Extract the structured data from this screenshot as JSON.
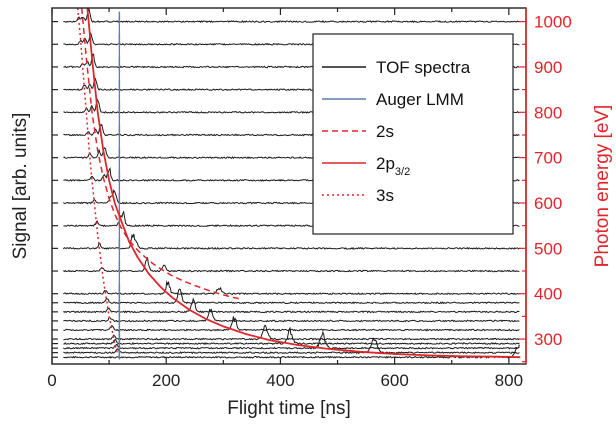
{
  "chart_data": {
    "type": "line",
    "xlabel": "Flight time [ns]",
    "ylabel_left": "Signal [arb. units]",
    "ylabel_right": "Photon energy [eV]",
    "xlim": [
      0,
      830
    ],
    "ylim_right": [
      245,
      1030
    ],
    "x_ticks": [
      0,
      200,
      400,
      600,
      800
    ],
    "y_ticks_right": [
      300,
      400,
      500,
      600,
      700,
      800,
      900,
      1000
    ],
    "grid": false,
    "legend_position": "top-right",
    "colors": {
      "spectra": "#1a1a1a",
      "auger": "#5a7fa8",
      "fit": "#e0262b",
      "right_axis": "#e0262b"
    },
    "legend": [
      {
        "label": "TOF spectra",
        "style": "solid",
        "color": "#1a1a1a"
      },
      {
        "label": "Auger LMM",
        "style": "solid",
        "color": "#5a7fa8"
      },
      {
        "label": "2s",
        "style": "dashed",
        "color": "#e0262b"
      },
      {
        "label": "2p",
        "sub": "3/2",
        "style": "solid",
        "color": "#e0262b"
      },
      {
        "label": "3s",
        "style": "dotted",
        "color": "#e0262b"
      }
    ],
    "photon_energies": [
      260,
      270,
      280,
      290,
      300,
      320,
      340,
      360,
      380,
      400,
      450,
      500,
      550,
      600,
      650,
      700,
      750,
      800,
      850,
      900,
      950,
      1000
    ],
    "spectra_xrange": [
      20,
      820
    ],
    "auger_lmm_time": 118,
    "series": [
      {
        "name": "2s",
        "style": "dashed",
        "x": [
          52,
          60,
          70,
          80,
          90,
          100,
          110,
          120,
          130,
          140,
          150,
          160,
          175,
          190,
          210,
          230,
          250,
          270,
          290,
          310,
          330
        ],
        "y": [
          1030,
          920,
          800,
          715,
          655,
          610,
          575,
          548,
          527,
          510,
          496,
          484,
          468,
          455,
          440,
          428,
          418,
          409,
          401,
          394,
          388
        ]
      },
      {
        "name": "2p3/2",
        "style": "solid",
        "x": [
          62,
          70,
          80,
          90,
          100,
          110,
          120,
          135,
          150,
          170,
          190,
          210,
          240,
          270,
          300,
          340,
          380,
          430,
          480,
          540,
          600,
          660,
          720,
          780,
          820
        ],
        "y": [
          1030,
          920,
          800,
          715,
          650,
          600,
          565,
          515,
          480,
          443,
          415,
          392,
          365,
          344,
          328,
          311,
          298,
          287,
          279,
          272,
          267,
          264,
          262,
          261,
          260
        ]
      },
      {
        "name": "3s",
        "style": "dotted",
        "x": [
          45,
          50,
          55,
          60,
          65,
          70,
          75,
          80,
          85,
          90,
          95,
          100,
          105,
          110,
          115
        ],
        "y": [
          1030,
          960,
          880,
          800,
          720,
          650,
          590,
          530,
          480,
          430,
          390,
          350,
          320,
          290,
          268
        ]
      }
    ]
  }
}
